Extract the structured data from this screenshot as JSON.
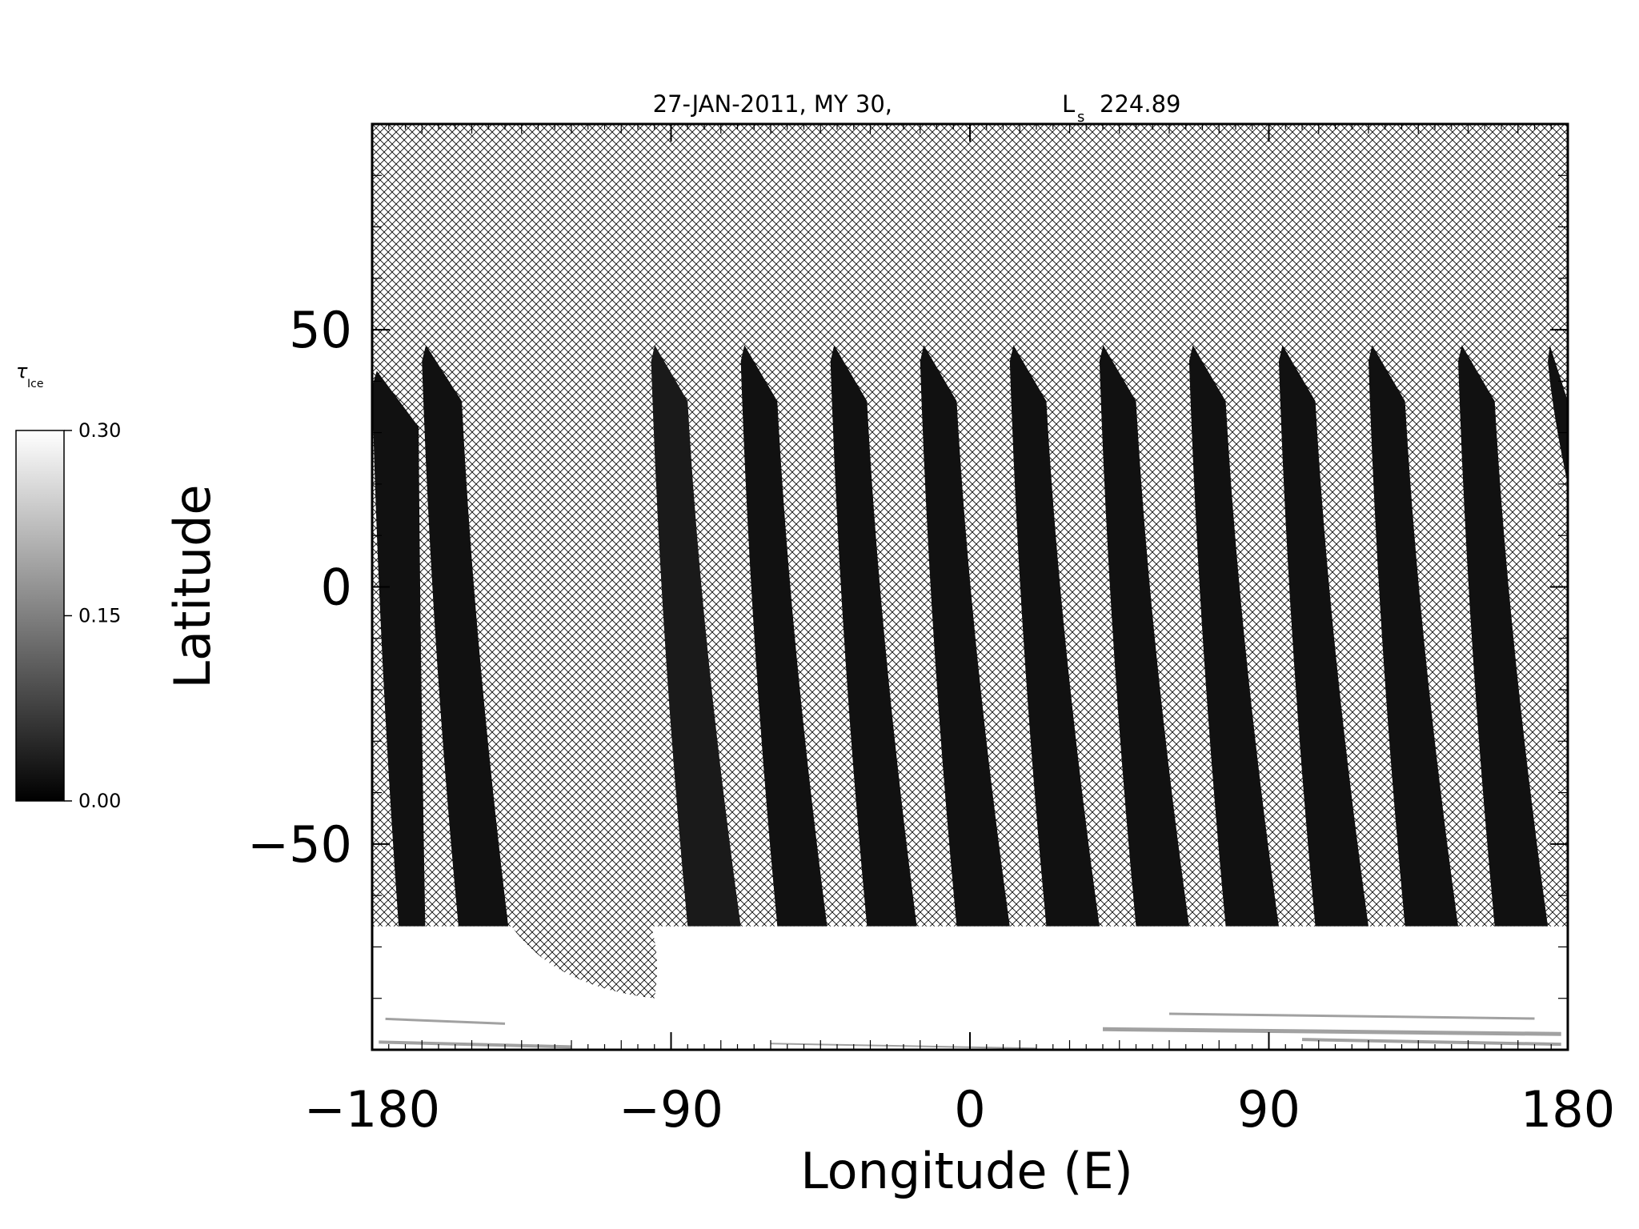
{
  "chart_data": {
    "type": "heatmap",
    "title": "27-JAN-2011, MY 30,",
    "title_ls_symbol": "L",
    "title_ls_subscript": "s",
    "title_ls_value": "224.89",
    "xlabel": "Longitude (E)",
    "ylabel": "Latitude",
    "xlim": [
      -180,
      180
    ],
    "ylim": [
      -90,
      90
    ],
    "xticks": [
      "-180",
      "-90",
      "0",
      "90",
      "180"
    ],
    "yticks": [
      "50",
      "0",
      "-50"
    ],
    "grid": false,
    "missing_data_style": "crosshatch",
    "colorscale": "grayscale",
    "colorbar": {
      "symbol": "τ",
      "subscript": "Ice",
      "min": 0.0,
      "max": 0.3,
      "ticks": [
        "0.30",
        "0.15",
        "0.00"
      ],
      "tick_values": [
        0.3,
        0.15,
        0.0
      ],
      "placement": "left"
    },
    "swaths": [
      {
        "lon_top_left": -180,
        "lon_top_right": -166,
        "lat_top": 42,
        "lon_bottom_left": -172,
        "lon_bottom_right": -164,
        "lat_bottom": -66,
        "typical_value": 0.02
      },
      {
        "lon_top_left": -165,
        "lon_top_right": -153,
        "lat_top": 47,
        "lon_bottom_left": -154,
        "lon_bottom_right": -139,
        "lat_bottom": -66,
        "typical_value": 0.02
      },
      {
        "lon_top_left": -96,
        "lon_top_right": -85,
        "lat_top": 47,
        "lon_bottom_left": -85,
        "lon_bottom_right": -69,
        "lat_bottom": -66,
        "typical_value": 0.03
      },
      {
        "lon_top_left": -69,
        "lon_top_right": -58,
        "lat_top": 47,
        "lon_bottom_left": -58,
        "lon_bottom_right": -43,
        "lat_bottom": -66,
        "typical_value": 0.02
      },
      {
        "lon_top_left": -42,
        "lon_top_right": -31,
        "lat_top": 47,
        "lon_bottom_left": -31,
        "lon_bottom_right": -16,
        "lat_bottom": -66,
        "typical_value": 0.02
      },
      {
        "lon_top_left": -15,
        "lon_top_right": -4,
        "lat_top": 47,
        "lon_bottom_left": -4,
        "lon_bottom_right": 12,
        "lat_bottom": -66,
        "typical_value": 0.02
      },
      {
        "lon_top_left": 12,
        "lon_top_right": 23,
        "lat_top": 47,
        "lon_bottom_left": 23,
        "lon_bottom_right": 39,
        "lat_bottom": -66,
        "typical_value": 0.02
      },
      {
        "lon_top_left": 39,
        "lon_top_right": 50,
        "lat_top": 47,
        "lon_bottom_left": 50,
        "lon_bottom_right": 66,
        "lat_bottom": -66,
        "typical_value": 0.02
      },
      {
        "lon_top_left": 66,
        "lon_top_right": 77,
        "lat_top": 47,
        "lon_bottom_left": 77,
        "lon_bottom_right": 93,
        "lat_bottom": -66,
        "typical_value": 0.02
      },
      {
        "lon_top_left": 93,
        "lon_top_right": 104,
        "lat_top": 47,
        "lon_bottom_left": 104,
        "lon_bottom_right": 120,
        "lat_bottom": -66,
        "typical_value": 0.02
      },
      {
        "lon_top_left": 120,
        "lon_top_right": 131,
        "lat_top": 47,
        "lon_bottom_left": 131,
        "lon_bottom_right": 147,
        "lat_bottom": -66,
        "typical_value": 0.02
      },
      {
        "lon_top_left": 147,
        "lon_top_right": 158,
        "lat_top": 47,
        "lon_bottom_left": 158,
        "lon_bottom_right": 174,
        "lat_bottom": -66,
        "typical_value": 0.02
      },
      {
        "lon_top_left": 174,
        "lon_top_right": 180,
        "lat_top": 47,
        "lon_bottom_left": 180,
        "lon_bottom_right": 180,
        "lat_bottom": 20,
        "typical_value": 0.02
      }
    ],
    "south_polar_band": {
      "lat_top": -66,
      "lat_bottom": -90,
      "typical_value": 0.3
    },
    "polar_gap": {
      "lon_left_at_top": -138,
      "lon_right_at_top": -96,
      "lat_top": -66,
      "lon_tip": -95,
      "lat_tip": -80
    }
  }
}
